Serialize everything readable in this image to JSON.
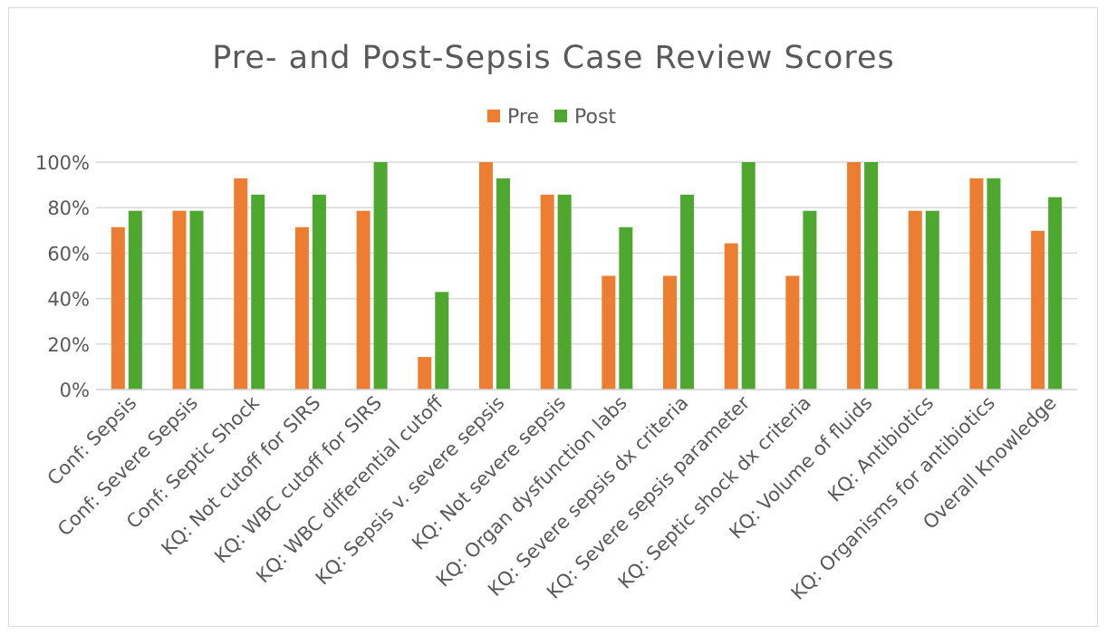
{
  "chart_data": {
    "type": "bar",
    "title": "Pre- and Post-Sepsis Case Review Scores",
    "xlabel": "",
    "ylabel": "",
    "ylim": [
      0,
      100
    ],
    "yticks": [
      "0%",
      "20%",
      "40%",
      "60%",
      "80%",
      "100%"
    ],
    "grid": true,
    "legend_position": "top-center",
    "categories": [
      "Conf: Sepsis",
      "Conf: Severe Sepsis",
      "Conf: Septic Shock",
      "KQ: Not cutoff for SIRS",
      "KQ: WBC cutoff for SIRS",
      "KQ: WBC differential cutoff",
      "KQ: Sepsis v. severe sepsis",
      "KQ: Not severe sepsis",
      "KQ: Organ dysfunction labs",
      "KQ: Severe sepsis dx criteria",
      "KQ: Severe sepsis parameter",
      "KQ: Septic shock dx criteria",
      "KQ: Volume of fluids",
      "KQ: Antibiotics",
      "KQ: Organisms for antibiotics",
      "Overall Knowledge"
    ],
    "series": [
      {
        "name": "Pre",
        "color": "#ED7D31",
        "values": [
          71.4,
          78.6,
          92.9,
          71.4,
          78.6,
          14.3,
          100,
          85.7,
          50,
          50,
          64.3,
          50,
          100,
          78.6,
          92.9,
          69.8
        ]
      },
      {
        "name": "Post",
        "color": "#4EA72E",
        "values": [
          78.6,
          78.6,
          85.7,
          85.7,
          100,
          42.9,
          92.9,
          85.7,
          71.4,
          85.7,
          100,
          78.6,
          100,
          78.6,
          92.9,
          84.6
        ]
      }
    ]
  }
}
